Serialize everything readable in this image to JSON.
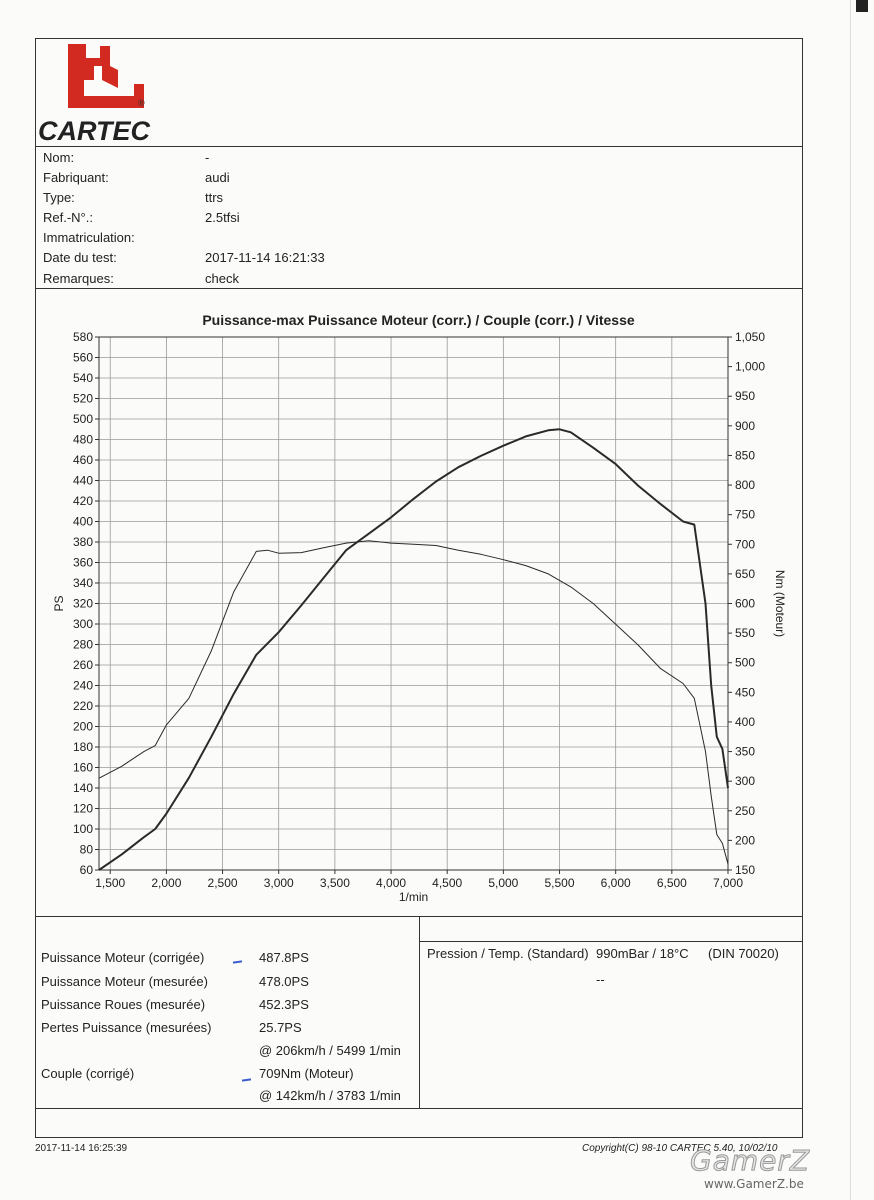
{
  "logo": {
    "text": "CARTEC",
    "registered": "®",
    "color": "#d22a20"
  },
  "vehicle_info": [
    {
      "label": "Nom:",
      "value": "-"
    },
    {
      "label": "Fabriquant:",
      "value": "audi"
    },
    {
      "label": "Type:",
      "value": "ttrs"
    },
    {
      "label": "Ref.-N°.:",
      "value": "2.5tfsi"
    },
    {
      "label": "Immatriculation:",
      "value": ""
    },
    {
      "label": "Date du test:",
      "value": "2017-11-14 16:21:33"
    },
    {
      "label": "Remarques:",
      "value": "check"
    }
  ],
  "chart_data": {
    "type": "line",
    "title": "Puissance-max Puissance Moteur (corr.) / Couple (corr.) / Vitesse",
    "xlabel": "1/min",
    "ylabel": "PS",
    "y2label": "Nm (Moteur)",
    "xlim": [
      1400,
      7000
    ],
    "ylim": [
      60,
      580
    ],
    "y2lim": [
      150,
      1050
    ],
    "x_ticks": [
      1500,
      2000,
      2500,
      3000,
      3500,
      4000,
      4500,
      5000,
      5500,
      6000,
      6500,
      7000
    ],
    "x_tick_labels": [
      "1,500",
      "2,000",
      "2,500",
      "3,000",
      "3,500",
      "4,000",
      "4,500",
      "5,000",
      "5,500",
      "6,000",
      "6,500",
      "7,000"
    ],
    "y_ticks": [
      60,
      80,
      100,
      120,
      140,
      160,
      180,
      200,
      220,
      240,
      260,
      280,
      300,
      320,
      340,
      360,
      380,
      400,
      420,
      440,
      460,
      480,
      500,
      520,
      540,
      560,
      580
    ],
    "y2_ticks": [
      150,
      200,
      250,
      300,
      350,
      400,
      450,
      500,
      550,
      600,
      650,
      700,
      750,
      800,
      850,
      900,
      950,
      1000,
      1050
    ],
    "y2_tick_labels": [
      "150",
      "200",
      "250",
      "300",
      "350",
      "400",
      "450",
      "500",
      "550",
      "600",
      "650",
      "700",
      "750",
      "800",
      "850",
      "900",
      "950",
      "1,000",
      "1,050"
    ],
    "grid": true,
    "series": [
      {
        "axis": "left",
        "x": [
          1400,
          1600,
          1800,
          1900,
          2000,
          2200,
          2400,
          2600,
          2800,
          3000,
          3200,
          3400,
          3600,
          3800,
          4000,
          4200,
          4400,
          4600,
          4800,
          5000,
          5200,
          5400,
          5500,
          5600,
          5800,
          6000,
          6200,
          6400,
          6600,
          6700,
          6800,
          6850,
          6900,
          6950,
          7000
        ],
        "y": [
          60,
          75,
          92,
          100,
          115,
          150,
          190,
          232,
          270,
          292,
          318,
          345,
          372,
          388,
          404,
          422,
          439,
          453,
          464,
          474,
          483,
          489,
          490,
          487,
          472,
          456,
          435,
          417,
          400,
          397,
          320,
          240,
          190,
          178,
          140
        ]
      },
      {
        "axis": "right",
        "x": [
          1400,
          1600,
          1800,
          1900,
          2000,
          2200,
          2400,
          2600,
          2800,
          2900,
          3000,
          3200,
          3400,
          3600,
          3800,
          4000,
          4200,
          4400,
          4600,
          4800,
          5000,
          5200,
          5400,
          5600,
          5800,
          6000,
          6200,
          6400,
          6600,
          6700,
          6800,
          6850,
          6900,
          6950,
          7000
        ],
        "y": [
          305,
          325,
          350,
          360,
          395,
          440,
          520,
          620,
          688,
          690,
          685,
          686,
          694,
          702,
          706,
          702,
          700,
          698,
          690,
          683,
          674,
          664,
          650,
          628,
          600,
          565,
          530,
          490,
          465,
          440,
          350,
          275,
          210,
          195,
          160
        ]
      }
    ]
  },
  "results": [
    {
      "label": "Puissance Moteur (corrigée)",
      "value": "487.8PS"
    },
    {
      "label": "Puissance Moteur (mesurée)",
      "value": "478.0PS"
    },
    {
      "label": "Puissance Roues (mesurée)",
      "value": "452.3PS"
    },
    {
      "label": "Pertes Puissance (mesurées)",
      "value": "25.7PS"
    }
  ],
  "power_condition": "@ 206km/h / 5499 1/min",
  "torque": {
    "label": "Couple (corrigé)",
    "value": "709Nm (Moteur)",
    "condition": "@ 142km/h / 3783 1/min"
  },
  "conditions": {
    "label": "Pression / Temp. (Standard)",
    "value": "990mBar / 18°C",
    "norm": "(DIN 70020)",
    "dash": "--"
  },
  "footer": {
    "timestamp": "2017-11-14 16:25:39",
    "copyright": "Copyright(C) 98-10 CARTEC 5.40, 10/02/10"
  },
  "watermark": {
    "name": "GamerZ",
    "url": "www.GamerZ.be"
  },
  "colors": {
    "line": "#2a2a2a",
    "grid": "#9a9a9a",
    "annotation_blue": "#3a5bd0"
  }
}
